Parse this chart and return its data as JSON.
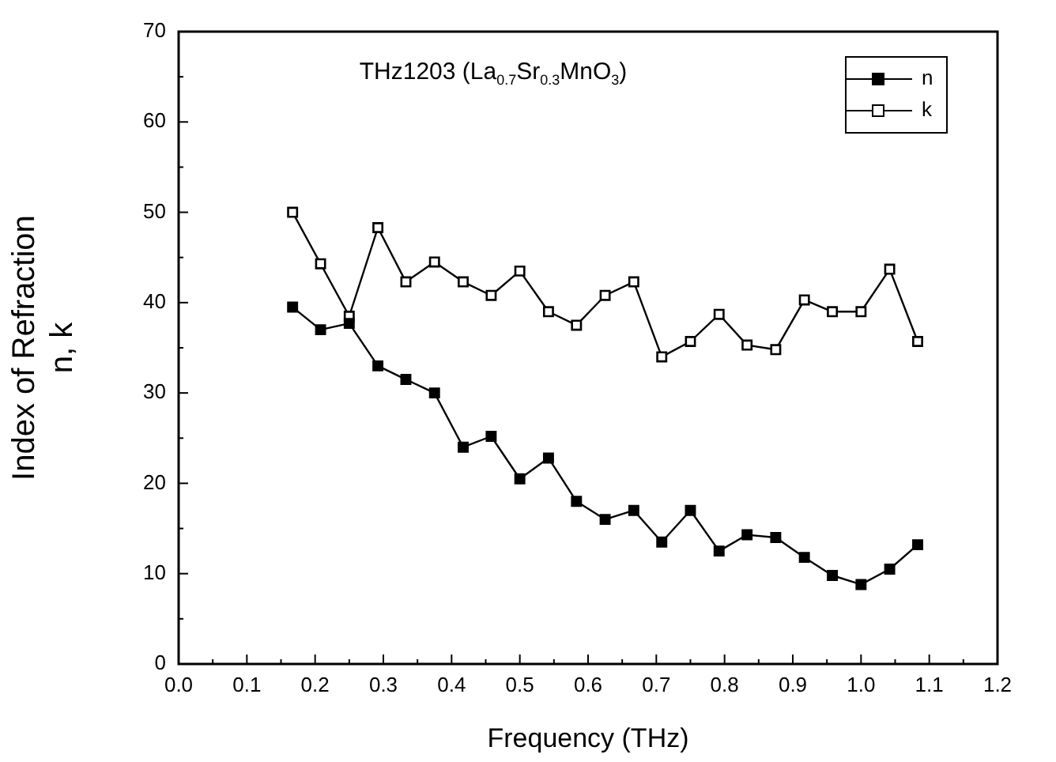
{
  "chart_data": {
    "type": "line",
    "title": "THz1203 (La$_{0.7}$Sr$_{0.3}$MnO$_{3}$)",
    "xlabel": "Frequency (THz)",
    "ylabel": "Index of Refraction\nn, k",
    "x": [
      0.167,
      0.208,
      0.25,
      0.292,
      0.333,
      0.375,
      0.417,
      0.458,
      0.5,
      0.542,
      0.583,
      0.625,
      0.667,
      0.708,
      0.75,
      0.792,
      0.833,
      0.875,
      0.917,
      0.958,
      1.0,
      1.042,
      1.083
    ],
    "series": [
      {
        "name": "n",
        "color": "#000000",
        "values": [
          39.5,
          37,
          37.7,
          33,
          31.5,
          30,
          24,
          25.2,
          20.5,
          22.8,
          18,
          16,
          17,
          13.5,
          17,
          12.5,
          14.3,
          14,
          11.8,
          9.8,
          8.8,
          10.5,
          13.2
        ]
      },
      {
        "name": "k",
        "color": "#000000",
        "values": [
          50,
          44.3,
          38.5,
          48.3,
          42.3,
          44.5,
          42.3,
          40.8,
          43.5,
          39,
          37.5,
          40.8,
          42.3,
          34,
          35.7,
          38.7,
          35.3,
          34.8,
          40.3,
          39,
          39,
          43.7,
          35.7
        ]
      }
    ],
    "xlim": [
      0,
      1.2
    ],
    "ylim": [
      0,
      70
    ],
    "xticks": [
      {
        "value": 0,
        "label": "0.0"
      },
      {
        "value": 0.05,
        "label": null
      },
      0.1,
      {
        "value": 0.15,
        "label": null
      },
      0.2,
      {
        "value": 0.25,
        "label": null
      },
      0.3,
      {
        "value": 0.35,
        "label": null
      },
      0.4,
      {
        "value": 0.45,
        "label": null
      },
      0.5,
      {
        "value": 0.55,
        "label": null
      },
      0.6,
      {
        "value": 0.65,
        "label": null
      },
      0.7,
      {
        "value": 0.75,
        "label": null
      },
      0.8,
      {
        "value": 0.85,
        "label": null
      },
      0.9,
      {
        "value": 0.95,
        "label": null
      },
      {
        "value": 1.0,
        "label": "1.0"
      },
      {
        "value": 1.05,
        "label": null
      },
      1.1,
      {
        "value": 1.15,
        "label": null
      },
      {
        "value": 1.2,
        "label": "1.2"
      }
    ],
    "yticks": [
      0,
      {
        "value": 5,
        "label": null
      },
      10,
      {
        "value": 15,
        "label": null
      },
      20,
      {
        "value": 25,
        "label": null
      },
      30,
      {
        "value": 35,
        "label": null
      },
      40,
      {
        "value": 45,
        "label": null
      },
      50,
      {
        "value": 55,
        "label": null
      },
      60,
      {
        "value": 65,
        "label": null
      },
      70
    ],
    "grid": false,
    "legend": "top right",
    "marker": "square",
    "line_style": "solid"
  }
}
